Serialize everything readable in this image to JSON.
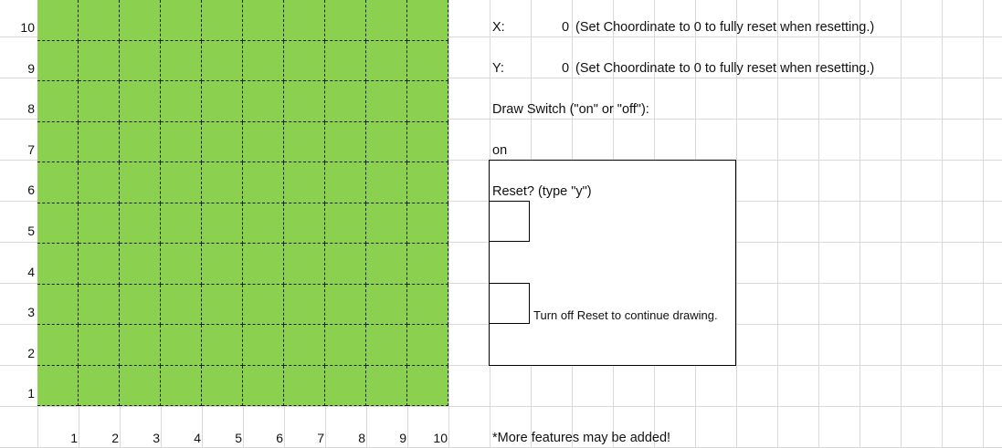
{
  "canvas": {
    "fill_color": "#8bd04f",
    "rows": [
      10,
      9,
      8,
      7,
      6,
      5,
      4,
      3,
      2,
      1
    ],
    "cols": [
      1,
      2,
      3,
      4,
      5,
      6,
      7,
      8,
      9,
      10
    ],
    "y_labels": [
      "10",
      "9",
      "8",
      "7",
      "6",
      "5",
      "4",
      "3",
      "2",
      "1"
    ],
    "x_labels": [
      "1",
      "2",
      "3",
      "4",
      "5",
      "6",
      "7",
      "8",
      "9",
      "10"
    ]
  },
  "controls": {
    "x_label": "X:",
    "x_value": "0",
    "x_note": "(Set Choordinate to 0 to fully reset when resetting.)",
    "y_label": "Y:",
    "y_value": "0",
    "y_note": "(Set Choordinate to 0 to fully reset when resetting.)",
    "draw_switch_label": "Draw Switch (\"on\" or \"off\"):",
    "draw_switch_value": "on",
    "reset_label": "Reset? (type \"y\")",
    "reset_note": "Turn off Reset to continue drawing.",
    "footer_note": "*More features may be added!"
  }
}
